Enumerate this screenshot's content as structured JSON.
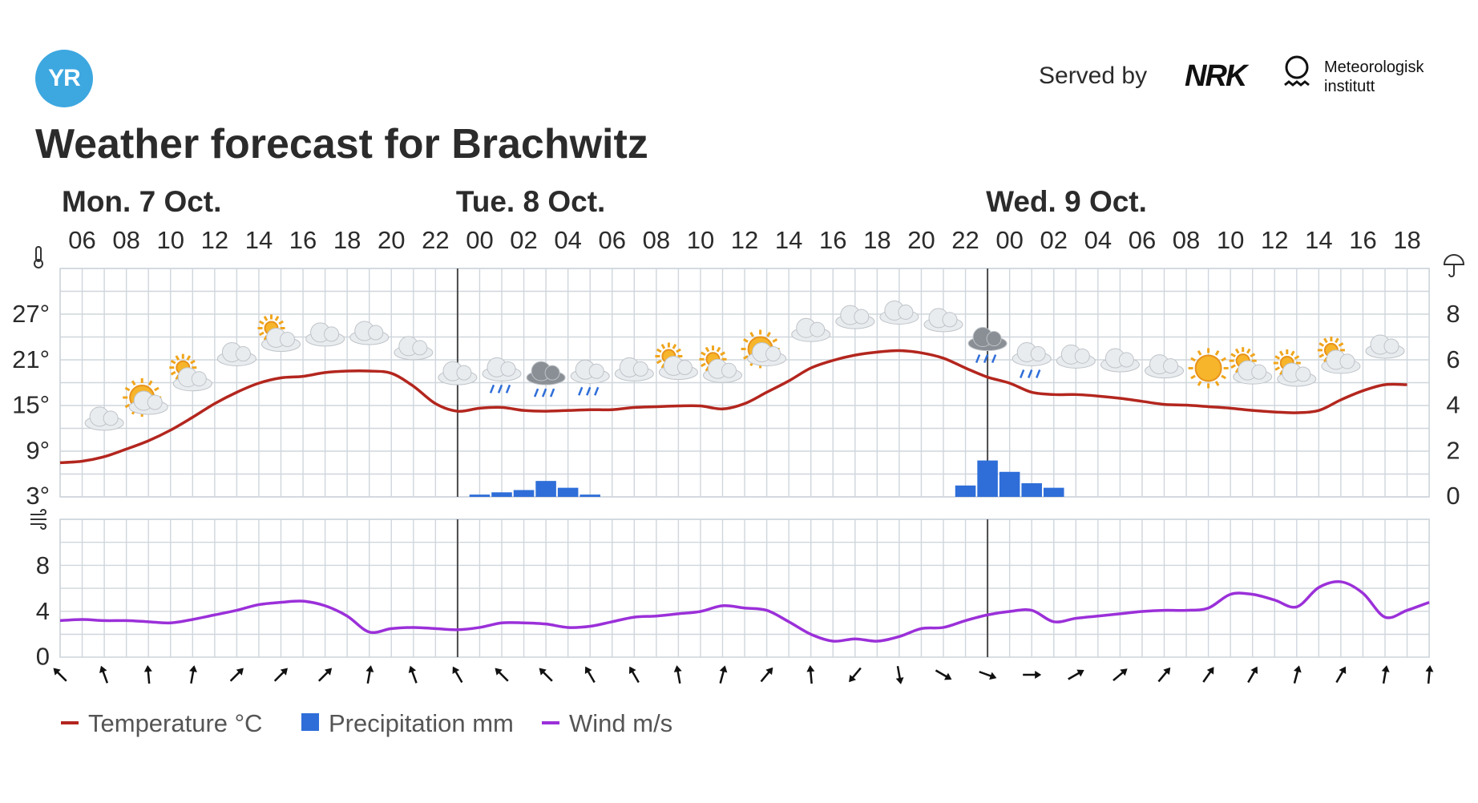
{
  "header": {
    "logo_text": "YR",
    "served_by": "Served by",
    "nrk_text": "NRK",
    "met_line1": "Meteorologisk",
    "met_line2": "institutt"
  },
  "title": "Weather forecast for Brachwitz",
  "colors": {
    "temperature": "#b3261e",
    "precipitation": "#2f6ed8",
    "wind": "#9b30d9",
    "grid": "#cfd6dc",
    "day_line": "#4a4a4a",
    "logo": "#3da7e0"
  },
  "chart_data": {
    "type": "line",
    "days": [
      {
        "label": "Mon. 7 Oct.",
        "start_index": 0
      },
      {
        "label": "Tue. 8 Oct.",
        "start_index": 18
      },
      {
        "label": "Wed. 9 Oct.",
        "start_index": 42
      }
    ],
    "hour_ticks": [
      "06",
      "08",
      "10",
      "12",
      "14",
      "16",
      "18",
      "20",
      "22",
      "00",
      "02",
      "04",
      "06",
      "08",
      "10",
      "12",
      "14",
      "16",
      "18",
      "20",
      "22",
      "00",
      "02",
      "04",
      "06",
      "08",
      "10",
      "12",
      "14",
      "16",
      "18"
    ],
    "x_hours_from_start": [
      0,
      61
    ],
    "temperature": {
      "name": "Temperature °C",
      "unit": "°C",
      "y_ticks": [
        "27°",
        "21°",
        "15°",
        "9°",
        "3°"
      ],
      "ylim": [
        3,
        32
      ],
      "points": [
        [
          0,
          7.5
        ],
        [
          1,
          7.7
        ],
        [
          2,
          8.3
        ],
        [
          3,
          9.3
        ],
        [
          4,
          10.4
        ],
        [
          5,
          11.8
        ],
        [
          6,
          13.5
        ],
        [
          7,
          15.3
        ],
        [
          8,
          16.8
        ],
        [
          9,
          18.0
        ],
        [
          10,
          18.7
        ],
        [
          11,
          18.9
        ],
        [
          12,
          19.4
        ],
        [
          13,
          19.6
        ],
        [
          14,
          19.6
        ],
        [
          15,
          19.3
        ],
        [
          16,
          17.6
        ],
        [
          17,
          15.3
        ],
        [
          18,
          14.3
        ],
        [
          19,
          14.7
        ],
        [
          20,
          14.8
        ],
        [
          21,
          14.4
        ],
        [
          22,
          14.3
        ],
        [
          23,
          14.4
        ],
        [
          24,
          14.5
        ],
        [
          25,
          14.5
        ],
        [
          26,
          14.8
        ],
        [
          27,
          14.9
        ],
        [
          28,
          15.0
        ],
        [
          29,
          15.0
        ],
        [
          30,
          14.6
        ],
        [
          31,
          15.3
        ],
        [
          32,
          16.8
        ],
        [
          33,
          18.3
        ],
        [
          34,
          20.0
        ],
        [
          35,
          21.0
        ],
        [
          36,
          21.7
        ],
        [
          37,
          22.1
        ],
        [
          38,
          22.3
        ],
        [
          39,
          22.0
        ],
        [
          40,
          21.3
        ],
        [
          41,
          20.0
        ],
        [
          42,
          18.8
        ],
        [
          43,
          18.0
        ],
        [
          44,
          16.8
        ],
        [
          45,
          16.5
        ],
        [
          46,
          16.5
        ],
        [
          47,
          16.3
        ],
        [
          48,
          16.0
        ],
        [
          49,
          15.6
        ],
        [
          50,
          15.2
        ],
        [
          51,
          15.1
        ],
        [
          52,
          14.9
        ],
        [
          53,
          14.7
        ],
        [
          54,
          14.4
        ],
        [
          55,
          14.2
        ],
        [
          56,
          14.1
        ],
        [
          57,
          14.4
        ],
        [
          58,
          15.8
        ],
        [
          59,
          17.0
        ],
        [
          60,
          17.8
        ],
        [
          61,
          17.8
        ]
      ]
    },
    "precipitation": {
      "name": "Precipitation mm",
      "unit": "mm",
      "y_ticks": [
        "8",
        "6",
        "4",
        "2",
        "0"
      ],
      "ylim": [
        0,
        10
      ],
      "bars": [
        [
          19,
          0.1
        ],
        [
          20,
          0.2
        ],
        [
          21,
          0.3
        ],
        [
          22,
          0.7
        ],
        [
          23,
          0.4
        ],
        [
          24,
          0.1
        ],
        [
          41,
          0.5
        ],
        [
          42,
          1.6
        ],
        [
          43,
          1.1
        ],
        [
          44,
          0.6
        ],
        [
          45,
          0.4
        ]
      ]
    },
    "wind": {
      "name": "Wind m/s",
      "unit": "m/s",
      "y_ticks": [
        "8",
        "4",
        "0"
      ],
      "ylim": [
        0,
        12
      ],
      "points": [
        [
          0,
          3.2
        ],
        [
          1,
          3.3
        ],
        [
          2,
          3.2
        ],
        [
          3,
          3.2
        ],
        [
          4,
          3.1
        ],
        [
          5,
          3.0
        ],
        [
          6,
          3.3
        ],
        [
          7,
          3.7
        ],
        [
          8,
          4.1
        ],
        [
          9,
          4.6
        ],
        [
          10,
          4.8
        ],
        [
          11,
          4.9
        ],
        [
          12,
          4.5
        ],
        [
          13,
          3.6
        ],
        [
          14,
          2.2
        ],
        [
          15,
          2.5
        ],
        [
          16,
          2.6
        ],
        [
          17,
          2.5
        ],
        [
          18,
          2.4
        ],
        [
          19,
          2.6
        ],
        [
          20,
          3.0
        ],
        [
          21,
          3.0
        ],
        [
          22,
          2.9
        ],
        [
          23,
          2.6
        ],
        [
          24,
          2.7
        ],
        [
          25,
          3.1
        ],
        [
          26,
          3.5
        ],
        [
          27,
          3.6
        ],
        [
          28,
          3.8
        ],
        [
          29,
          4.0
        ],
        [
          30,
          4.5
        ],
        [
          31,
          4.3
        ],
        [
          32,
          4.1
        ],
        [
          33,
          3.1
        ],
        [
          34,
          2.0
        ],
        [
          35,
          1.4
        ],
        [
          36,
          1.6
        ],
        [
          37,
          1.4
        ],
        [
          38,
          1.8
        ],
        [
          39,
          2.5
        ],
        [
          40,
          2.6
        ],
        [
          41,
          3.2
        ],
        [
          42,
          3.7
        ],
        [
          43,
          4.0
        ],
        [
          44,
          4.1
        ],
        [
          45,
          3.1
        ],
        [
          46,
          3.4
        ],
        [
          47,
          3.6
        ],
        [
          48,
          3.8
        ],
        [
          49,
          4.0
        ],
        [
          50,
          4.1
        ],
        [
          51,
          4.1
        ],
        [
          52,
          4.3
        ],
        [
          53,
          5.5
        ],
        [
          54,
          5.5
        ],
        [
          55,
          5.0
        ],
        [
          56,
          4.4
        ],
        [
          57,
          6.1
        ],
        [
          58,
          6.6
        ],
        [
          59,
          5.6
        ],
        [
          60,
          3.5
        ],
        [
          61,
          4.1
        ],
        [
          62,
          4.8
        ]
      ]
    },
    "legend": [
      "Temperature °C",
      "Precipitation mm",
      "Wind m/s"
    ],
    "legend_position": "bottom-left",
    "grid": true
  },
  "weather_icons": [
    {
      "hour": 2,
      "icon": "cloud-icon"
    },
    {
      "hour": 4,
      "icon": "partly-sunny-icon"
    },
    {
      "hour": 6,
      "icon": "partly-cloudy-icon"
    },
    {
      "hour": 8,
      "icon": "cloud-icon"
    },
    {
      "hour": 10,
      "icon": "partly-cloudy-icon"
    },
    {
      "hour": 12,
      "icon": "cloud-icon"
    },
    {
      "hour": 14,
      "icon": "cloud-icon"
    },
    {
      "hour": 16,
      "icon": "cloud-icon"
    },
    {
      "hour": 18,
      "icon": "cloud-icon"
    },
    {
      "hour": 20,
      "icon": "light-rain-icon"
    },
    {
      "hour": 22,
      "icon": "dark-rain-icon"
    },
    {
      "hour": 24,
      "icon": "light-rain-icon"
    },
    {
      "hour": 26,
      "icon": "cloud-icon"
    },
    {
      "hour": 28,
      "icon": "partly-cloudy-icon"
    },
    {
      "hour": 30,
      "icon": "partly-cloudy-icon"
    },
    {
      "hour": 32,
      "icon": "partly-sunny-icon"
    },
    {
      "hour": 34,
      "icon": "cloud-icon"
    },
    {
      "hour": 36,
      "icon": "cloud-icon"
    },
    {
      "hour": 38,
      "icon": "cloud-icon"
    },
    {
      "hour": 40,
      "icon": "cloud-icon"
    },
    {
      "hour": 42,
      "icon": "dark-rain-icon"
    },
    {
      "hour": 44,
      "icon": "light-rain-icon"
    },
    {
      "hour": 46,
      "icon": "cloud-icon"
    },
    {
      "hour": 48,
      "icon": "cloud-icon"
    },
    {
      "hour": 50,
      "icon": "cloud-icon"
    },
    {
      "hour": 52,
      "icon": "sun-icon"
    },
    {
      "hour": 54,
      "icon": "partly-cloudy-icon"
    },
    {
      "hour": 56,
      "icon": "partly-cloudy-icon"
    },
    {
      "hour": 58,
      "icon": "partly-cloudy-icon"
    },
    {
      "hour": 60,
      "icon": "cloud-icon"
    }
  ],
  "wind_directions_deg": [
    315,
    340,
    355,
    10,
    45,
    45,
    45,
    10,
    340,
    330,
    315,
    315,
    330,
    330,
    350,
    15,
    40,
    355,
    220,
    170,
    120,
    110,
    90,
    60,
    50,
    40,
    35,
    30,
    15,
    30,
    10,
    5
  ],
  "icons": {
    "thermometer": "thermometer-icon",
    "umbrella": "umbrella-icon",
    "wind": "wind-icon"
  }
}
